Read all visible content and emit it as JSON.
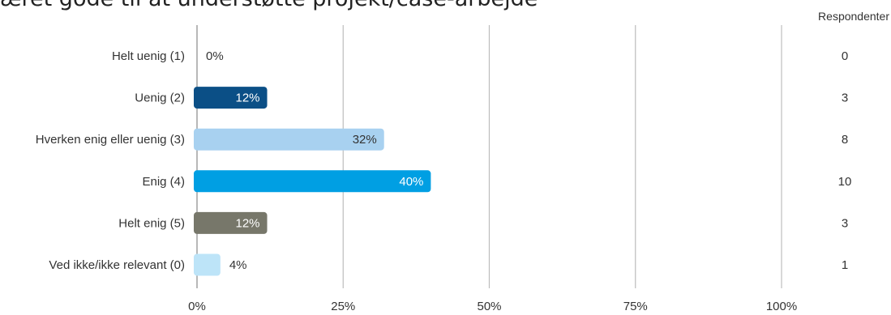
{
  "title": "æret gode til at understøtte projekt/case-arbejde",
  "chart_data": {
    "type": "bar",
    "orientation": "horizontal",
    "categories": [
      "Helt uenig (1)",
      "Uenig (2)",
      "Hverken enig eller uenig (3)",
      "Enig (4)",
      "Helt enig (5)",
      "Ved ikke/ikke relevant (0)"
    ],
    "values": [
      0,
      12,
      32,
      40,
      12,
      4
    ],
    "value_labels": [
      "0%",
      "12%",
      "32%",
      "40%",
      "12%",
      "4%"
    ],
    "colors": [
      "#0b4f86",
      "#0b4f86",
      "#a8d1f0",
      "#009fe3",
      "#77776a",
      "#bde4f8"
    ],
    "label_colors": [
      "#333333",
      "#ffffff",
      "#333333",
      "#ffffff",
      "#ffffff",
      "#333333"
    ],
    "xlim": [
      0,
      100
    ],
    "xticks": [
      0,
      25,
      50,
      75,
      100
    ],
    "xtick_labels": [
      "0%",
      "25%",
      "50%",
      "75%",
      "100%"
    ],
    "grid": true,
    "counts_header": "Respondenter",
    "counts": [
      "0",
      "3",
      "8",
      "10",
      "3",
      "1"
    ]
  }
}
